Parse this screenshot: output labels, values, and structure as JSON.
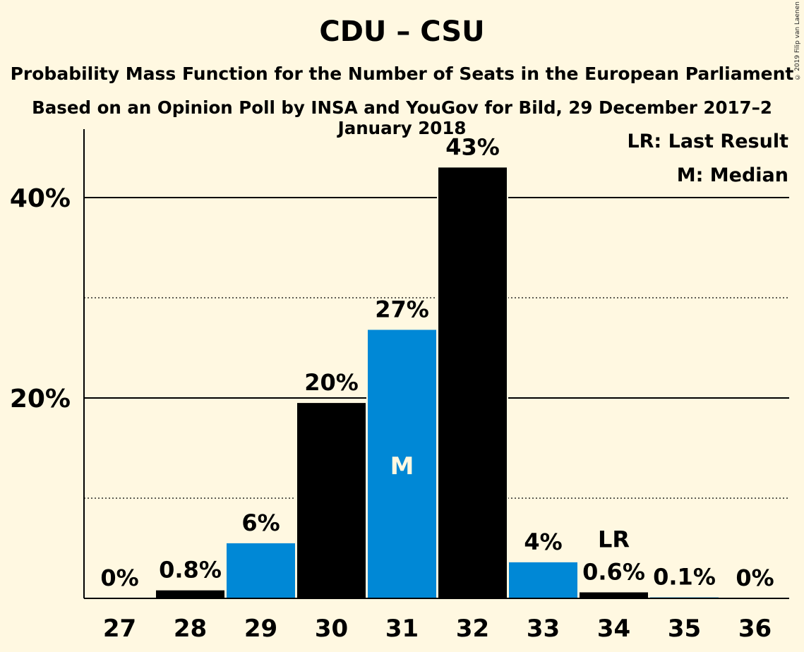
{
  "title": "CDU – CSU",
  "subtitle1": "Probability Mass Function for the Number of Seats in the European Parliament",
  "subtitle2": "Based on an Opinion Poll by INSA and YouGov for Bild, 29 December 2017–2 January 2018",
  "copyright": "© 2019 Filip van Laenen",
  "legend": {
    "last_result": "LR: Last Result",
    "median": "M: Median"
  },
  "colors": {
    "background": "#fff8e1",
    "black": "#000000",
    "blue": "#0088d6"
  },
  "chart_data": {
    "type": "bar",
    "categories": [
      "27",
      "28",
      "29",
      "30",
      "31",
      "32",
      "33",
      "34",
      "35",
      "36"
    ],
    "values": [
      0,
      0.8,
      5.5,
      19.5,
      26.8,
      43,
      3.6,
      0.6,
      0.1,
      0
    ],
    "labels": [
      "0%",
      "0.8%",
      "6%",
      "20%",
      "27%",
      "43%",
      "4%",
      "0.6%",
      "0.1%",
      "0%"
    ],
    "bar_colors": [
      "black",
      "black",
      "blue",
      "black",
      "blue",
      "black",
      "blue",
      "black",
      "blue",
      "black"
    ],
    "median_category": "31",
    "median_marker": "M",
    "last_result_category": "34",
    "last_result_marker": "LR",
    "y_ticks": [
      {
        "value": 20,
        "label": "20%"
      },
      {
        "value": 40,
        "label": "40%"
      }
    ],
    "y_minor_gridlines": [
      10,
      30
    ],
    "ylim": [
      0,
      47
    ],
    "legend_position": "top-right"
  }
}
